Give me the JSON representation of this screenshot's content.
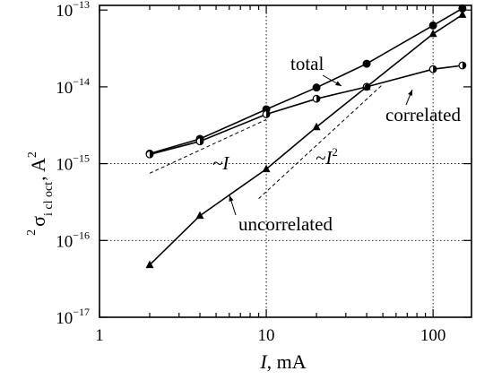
{
  "chart_data": {
    "type": "line",
    "xscale": "log",
    "yscale": "log",
    "xlim": [
      1,
      170
    ],
    "ylim": [
      1e-17,
      1.15e-13
    ],
    "xticks": [
      1,
      10,
      100
    ],
    "xtick_labels": [
      "1",
      "10",
      "100"
    ],
    "yticks": [
      1e-17,
      1e-16,
      1e-15,
      1e-14,
      1e-13
    ],
    "ytick_labels": [
      {
        "base": "10",
        "exp": "−17"
      },
      {
        "base": "10",
        "exp": "−16"
      },
      {
        "base": "10",
        "exp": "−15"
      },
      {
        "base": "10",
        "exp": "−14"
      },
      {
        "base": "10",
        "exp": "−13"
      }
    ],
    "xlabel": {
      "var": "I",
      "unit": ", mA"
    },
    "ylabel": {
      "sigma": "σ",
      "sup": "2",
      "sub": "i cl oct",
      "unit": ", A",
      "unit_sup": "2"
    },
    "grid": "dotted lines at x = 10, 100 and y = 1e-15, 1e-16",
    "series": [
      {
        "name": "total",
        "marker": "circle-filled",
        "color": "#000000",
        "x": [
          2,
          4,
          10,
          20,
          40,
          100,
          150
        ],
        "y": [
          1.35e-15,
          2.1e-15,
          5.1e-15,
          9.8e-15,
          2e-14,
          6.3e-14,
          1.05e-13
        ]
      },
      {
        "name": "correlated",
        "marker": "circle-half",
        "color": "#000000",
        "x": [
          2,
          4,
          10,
          20,
          40,
          100,
          150
        ],
        "y": [
          1.32e-15,
          1.95e-15,
          4.4e-15,
          7e-15,
          1e-14,
          1.7e-14,
          1.9e-14
        ]
      },
      {
        "name": "uncorrelated",
        "marker": "triangle-filled",
        "color": "#000000",
        "x": [
          2,
          4,
          10,
          20,
          40,
          100,
          150
        ],
        "y": [
          4.8e-17,
          2.1e-16,
          8.5e-16,
          3e-15,
          1e-14,
          4.9e-14,
          8.7e-14
        ]
      }
    ],
    "reference_lines": [
      {
        "label": "~I",
        "style": "dashed",
        "x": [
          2,
          10
        ],
        "y": [
          7.5e-16,
          3.75e-15
        ]
      },
      {
        "label": "~I",
        "label_sup": "2",
        "style": "dashed",
        "x": [
          9,
          50
        ],
        "y": [
          3.5e-16,
          1.08e-14
        ]
      }
    ],
    "annotations": [
      {
        "text": "total",
        "points_to_series": "total"
      },
      {
        "text": "correlated",
        "points_to_series": "correlated"
      },
      {
        "text": "uncorrelated",
        "points_to_series": "uncorrelated"
      }
    ]
  }
}
